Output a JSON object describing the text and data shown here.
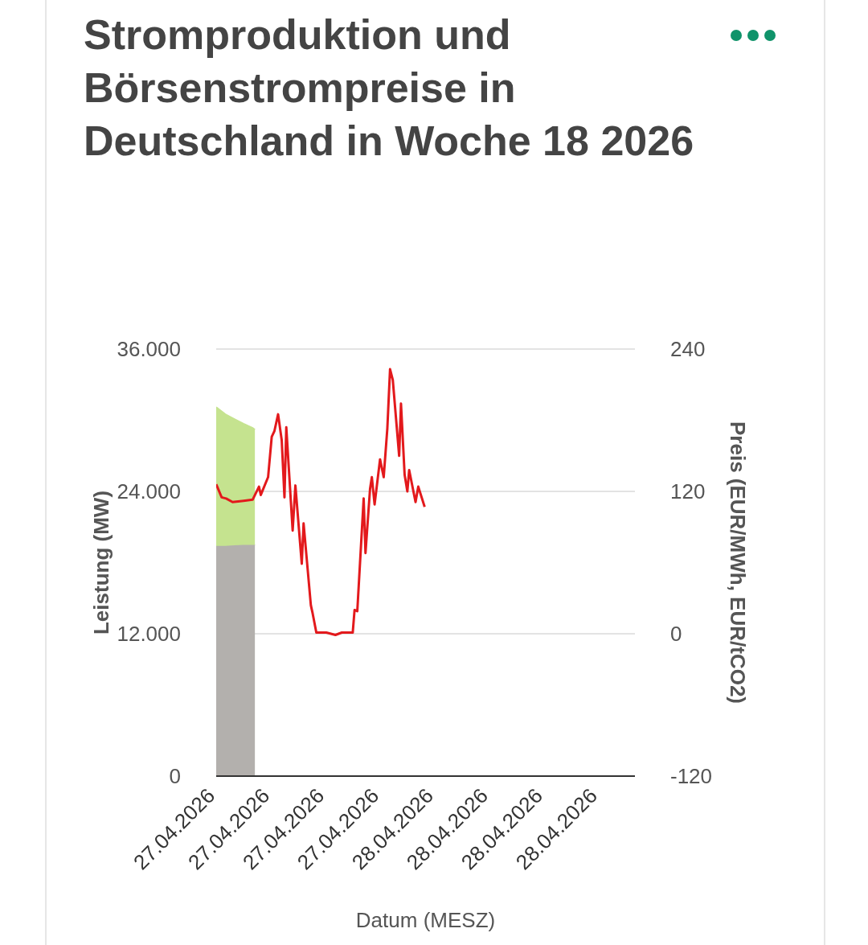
{
  "chart_data": {
    "type": "line",
    "title": "Stromproduktion und Börsenstrompreise in Deutschland in Woche 18 2026",
    "xlabel": "Datum (MESZ)",
    "ylabel": "Leistung (MW)",
    "y2label": "Preis (EUR/MWh, EUR/tCO2)",
    "xlim": [
      "2026-04-27T00:00",
      "2026-04-28T22:00"
    ],
    "xticks": [
      {
        "value": "2026-04-27T00:00",
        "label": "27.04.2026"
      },
      {
        "value": "2026-04-27T06:00",
        "label": "27.04.2026"
      },
      {
        "value": "2026-04-27T12:00",
        "label": "27.04.2026"
      },
      {
        "value": "2026-04-27T18:00",
        "label": "27.04.2026"
      },
      {
        "value": "2026-04-28T00:00",
        "label": "28.04.2026"
      },
      {
        "value": "2026-04-28T06:00",
        "label": "28.04.2026"
      },
      {
        "value": "2026-04-28T12:00",
        "label": "28.04.2026"
      },
      {
        "value": "2026-04-28T18:00",
        "label": "28.04.2026"
      }
    ],
    "ylim": [
      0,
      36000
    ],
    "yticks": [
      {
        "value": 0,
        "label": "0"
      },
      {
        "value": 12000,
        "label": "12.000"
      },
      {
        "value": 24000,
        "label": "24.000"
      },
      {
        "value": 36000,
        "label": "36.000"
      }
    ],
    "y2lim": [
      -120,
      240
    ],
    "y2ticks": [
      -120,
      0,
      120,
      240
    ],
    "stacked": true,
    "grid": "y",
    "legend": false,
    "marker": "none",
    "line_style": "solid",
    "series": [
      {
        "type": "area",
        "color": "#b3b0ad",
        "x": [
          "2026-04-27T00:00",
          "2026-04-27T01:00",
          "2026-04-27T02:00",
          "2026-04-27T03:00",
          "2026-04-27T04:00",
          "2026-04-27T04:15"
        ],
        "values": [
          19400,
          19400,
          19450,
          19500,
          19500,
          19500
        ]
      },
      {
        "type": "area",
        "color": "#c5e38f",
        "x": [
          "2026-04-27T00:00",
          "2026-04-27T01:00",
          "2026-04-27T02:00",
          "2026-04-27T03:00",
          "2026-04-27T04:00",
          "2026-04-27T04:15"
        ],
        "values": [
          11700,
          11100,
          10650,
          10200,
          9850,
          9700
        ]
      },
      {
        "axis": "y2",
        "color": "#e3191c",
        "x": [
          "2026-04-27T00:00",
          "2026-04-27T00:36",
          "2026-04-27T01:06",
          "2026-04-27T01:48",
          "2026-04-27T03:00",
          "2026-04-27T04:00",
          "2026-04-27T04:42",
          "2026-04-27T04:54",
          "2026-04-27T05:42",
          "2026-04-27T06:06",
          "2026-04-27T06:24",
          "2026-04-27T06:48",
          "2026-04-27T07:12",
          "2026-04-27T07:30",
          "2026-04-27T07:42",
          "2026-04-27T08:24",
          "2026-04-27T08:42",
          "2026-04-27T09:24",
          "2026-04-27T09:36",
          "2026-04-27T10:24",
          "2026-04-27T10:36",
          "2026-04-27T11:00",
          "2026-04-27T12:06",
          "2026-04-27T13:06",
          "2026-04-27T13:48",
          "2026-04-27T15:00",
          "2026-04-27T15:12",
          "2026-04-27T15:30",
          "2026-04-27T16:12",
          "2026-04-27T16:24",
          "2026-04-27T16:54",
          "2026-04-27T17:06",
          "2026-04-27T17:24",
          "2026-04-27T18:00",
          "2026-04-27T18:24",
          "2026-04-27T18:48",
          "2026-04-27T19:06",
          "2026-04-27T19:24",
          "2026-04-27T20:06",
          "2026-04-27T20:18",
          "2026-04-27T20:42",
          "2026-04-27T21:00",
          "2026-04-27T21:12",
          "2026-04-27T21:54",
          "2026-04-27T22:12",
          "2026-04-27T22:54"
        ],
        "values": [
          126,
          115,
          114,
          111,
          112,
          113,
          124,
          117,
          132,
          166,
          171,
          185,
          163,
          115,
          174,
          87,
          125,
          59,
          93,
          24,
          17,
          1,
          1,
          -1,
          1,
          1,
          20,
          19,
          114,
          68,
          122,
          132,
          109,
          147,
          132,
          173,
          223,
          214,
          150,
          194,
          134,
          120,
          138,
          111,
          124,
          107
        ]
      }
    ]
  }
}
